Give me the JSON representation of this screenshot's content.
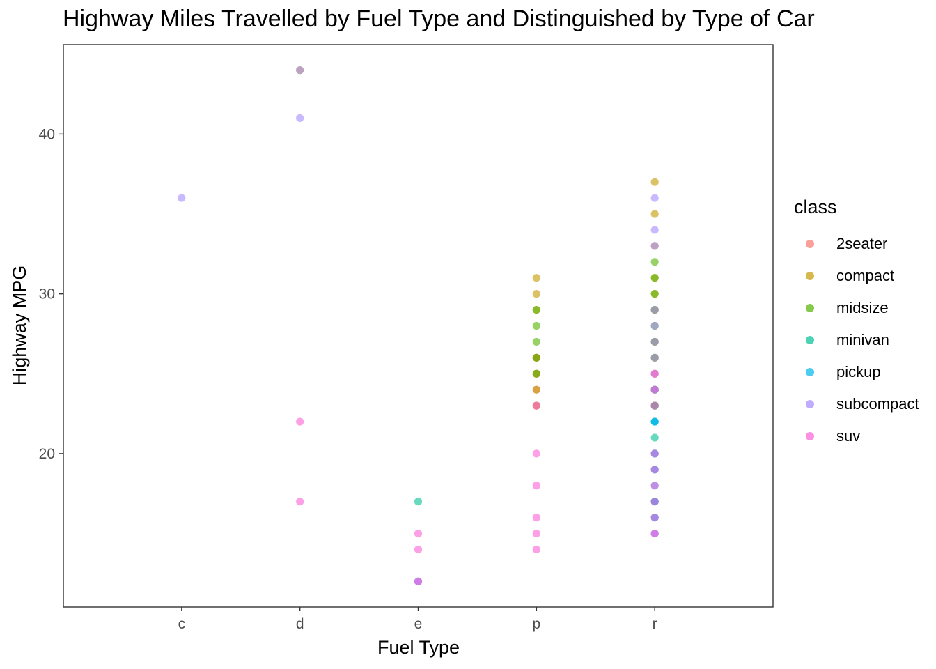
{
  "chart_data": {
    "type": "scatter",
    "title": "Highway Miles Travelled by Fuel Type and Distinguished by Type of Car",
    "xlabel": "Fuel Type",
    "ylabel": "Highway MPG",
    "categories": [
      "c",
      "d",
      "e",
      "p",
      "r"
    ],
    "ylim": [
      10.4,
      45.6
    ],
    "yticks": [
      20,
      30,
      40
    ],
    "grid": false,
    "legend": {
      "title": "class",
      "placement": "right"
    },
    "series": [
      {
        "name": "2seater",
        "color": "#F8766D",
        "points": [
          [
            "p",
            26
          ],
          [
            "p",
            25
          ],
          [
            "p",
            26
          ],
          [
            "p",
            24
          ],
          [
            "p",
            23
          ]
        ]
      },
      {
        "name": "compact",
        "color": "#C49A00",
        "points": [
          [
            "p",
            29
          ],
          [
            "p",
            31
          ],
          [
            "p",
            30
          ],
          [
            "p",
            26
          ],
          [
            "p",
            25
          ],
          [
            "p",
            23
          ],
          [
            "p",
            24
          ],
          [
            "r",
            37
          ],
          [
            "r",
            35
          ],
          [
            "r",
            33
          ],
          [
            "r",
            31
          ],
          [
            "r",
            30
          ],
          [
            "r",
            29
          ],
          [
            "r",
            27
          ],
          [
            "r",
            26
          ],
          [
            "r",
            25
          ],
          [
            "r",
            24
          ],
          [
            "r",
            23
          ],
          [
            "d",
            44
          ]
        ]
      },
      {
        "name": "midsize",
        "color": "#53B400",
        "points": [
          [
            "p",
            29
          ],
          [
            "p",
            28
          ],
          [
            "p",
            27
          ],
          [
            "p",
            26
          ],
          [
            "p",
            25
          ],
          [
            "r",
            32
          ],
          [
            "r",
            31
          ],
          [
            "r",
            30
          ],
          [
            "r",
            29
          ],
          [
            "r",
            28
          ],
          [
            "r",
            27
          ],
          [
            "r",
            26
          ],
          [
            "r",
            24
          ],
          [
            "r",
            23
          ]
        ]
      },
      {
        "name": "minivan",
        "color": "#00C094",
        "points": [
          [
            "e",
            17
          ],
          [
            "r",
            24
          ],
          [
            "r",
            22
          ],
          [
            "r",
            23
          ],
          [
            "r",
            24
          ],
          [
            "r",
            21
          ],
          [
            "r",
            17
          ]
        ]
      },
      {
        "name": "pickup",
        "color": "#00B6EB",
        "points": [
          [
            "e",
            12
          ],
          [
            "r",
            22
          ],
          [
            "r",
            20
          ],
          [
            "r",
            19
          ],
          [
            "r",
            18
          ],
          [
            "r",
            17
          ],
          [
            "r",
            16
          ],
          [
            "r",
            15
          ],
          [
            "r",
            22
          ],
          [
            "r",
            20
          ],
          [
            "r",
            19
          ],
          [
            "r",
            17
          ],
          [
            "r",
            16
          ]
        ]
      },
      {
        "name": "subcompact",
        "color": "#A58AFF",
        "points": [
          [
            "c",
            36
          ],
          [
            "d",
            44
          ],
          [
            "d",
            41
          ],
          [
            "e",
            12
          ],
          [
            "r",
            36
          ],
          [
            "r",
            34
          ],
          [
            "r",
            33
          ],
          [
            "r",
            29
          ],
          [
            "r",
            28
          ],
          [
            "r",
            27
          ],
          [
            "r",
            26
          ],
          [
            "r",
            25
          ],
          [
            "r",
            24
          ],
          [
            "r",
            15
          ]
        ]
      },
      {
        "name": "suv",
        "color": "#FB61D7",
        "points": [
          [
            "d",
            22
          ],
          [
            "d",
            17
          ],
          [
            "e",
            15
          ],
          [
            "e",
            14
          ],
          [
            "e",
            12
          ],
          [
            "p",
            23
          ],
          [
            "p",
            20
          ],
          [
            "p",
            18
          ],
          [
            "p",
            16
          ],
          [
            "p",
            15
          ],
          [
            "p",
            14
          ],
          [
            "r",
            25
          ],
          [
            "r",
            24
          ],
          [
            "r",
            23
          ],
          [
            "r",
            20
          ],
          [
            "r",
            19
          ],
          [
            "r",
            18
          ],
          [
            "r",
            17
          ],
          [
            "r",
            16
          ],
          [
            "r",
            15
          ]
        ]
      }
    ]
  }
}
